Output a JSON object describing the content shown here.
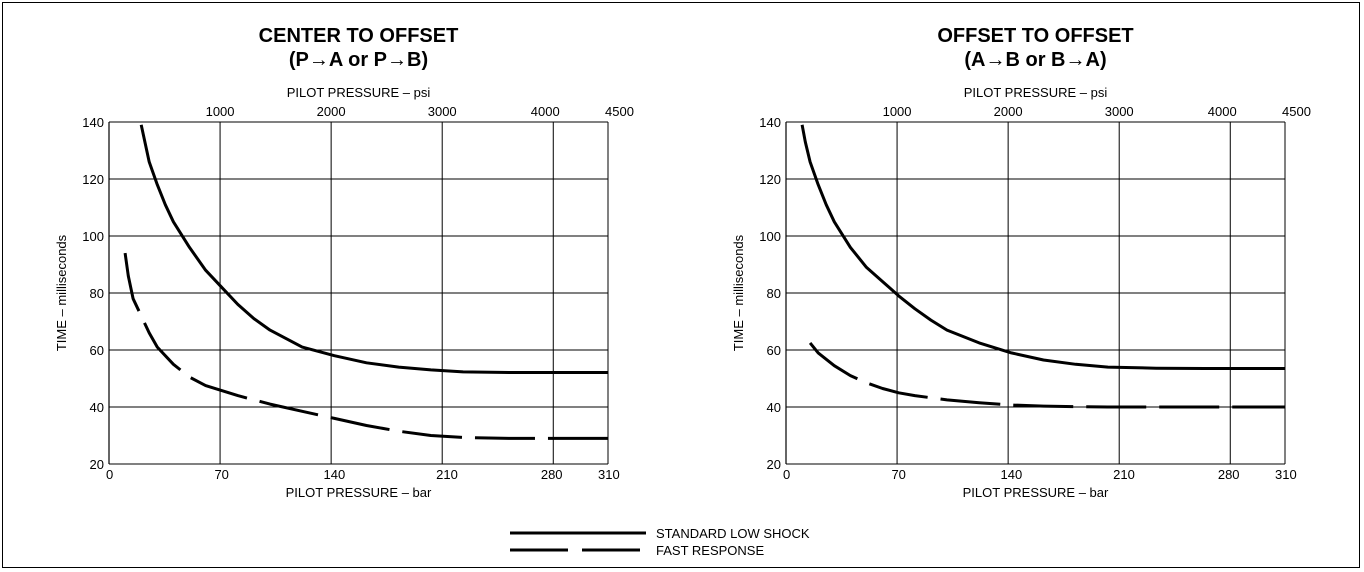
{
  "colors": {
    "line": "#000000",
    "grid": "#000000",
    "background": "#ffffff"
  },
  "chart_data": [
    {
      "type": "line",
      "title": "CENTER TO OFFSET",
      "subtitle": "(P→A or P→B)",
      "xlabel": "PILOT PRESSURE – bar",
      "x2label": "PILOT PRESSURE – psi",
      "ylabel": "TIME – milliseconds",
      "xlim": [
        0,
        310
      ],
      "ylim": [
        20,
        140
      ],
      "xticks": [
        0,
        70,
        140,
        210,
        280,
        310
      ],
      "x2ticks": [
        {
          "label": "1000",
          "bar": 69
        },
        {
          "label": "2000",
          "bar": 138
        },
        {
          "label": "3000",
          "bar": 207
        },
        {
          "label": "4000",
          "bar": 276
        },
        {
          "label": "4500",
          "bar": 310
        }
      ],
      "yticks": [
        20,
        40,
        60,
        80,
        100,
        120,
        140
      ],
      "grid": true,
      "series": [
        {
          "name": "STANDARD LOW SHOCK",
          "style": "solid",
          "x": [
            20,
            25,
            30,
            35,
            40,
            50,
            60,
            70,
            80,
            90,
            100,
            110,
            120,
            140,
            160,
            180,
            200,
            220,
            250,
            280,
            310
          ],
          "y": [
            139,
            126,
            118,
            111,
            105,
            96,
            88,
            82,
            76,
            71,
            67,
            64,
            61,
            58,
            55.5,
            54,
            53,
            52.3,
            52.1,
            52.1,
            52.1
          ]
        },
        {
          "name": "FAST RESPONSE",
          "style": "dashed",
          "x": [
            10,
            12,
            15,
            20,
            25,
            30,
            40,
            50,
            60,
            80,
            100,
            120,
            140,
            160,
            180,
            200,
            220,
            250,
            280,
            310
          ],
          "y": [
            94,
            86,
            78,
            72,
            66,
            61,
            55,
            50.5,
            47.5,
            44,
            41,
            38.5,
            36,
            33.5,
            31.5,
            30,
            29.3,
            29,
            29,
            29
          ]
        }
      ]
    },
    {
      "type": "line",
      "title": "OFFSET TO OFFSET",
      "subtitle": "(A→B or B→A)",
      "xlabel": "PILOT PRESSURE – bar",
      "x2label": "PILOT PRESSURE – psi",
      "ylabel": "TIME – milliseconds",
      "xlim": [
        0,
        310
      ],
      "ylim": [
        20,
        140
      ],
      "xticks": [
        0,
        70,
        140,
        210,
        280,
        310
      ],
      "x2ticks": [
        {
          "label": "1000",
          "bar": 69
        },
        {
          "label": "2000",
          "bar": 138
        },
        {
          "label": "3000",
          "bar": 207
        },
        {
          "label": "4000",
          "bar": 276
        },
        {
          "label": "4500",
          "bar": 310
        }
      ],
      "yticks": [
        20,
        40,
        60,
        80,
        100,
        120,
        140
      ],
      "grid": true,
      "series": [
        {
          "name": "STANDARD LOW SHOCK",
          "style": "solid",
          "x": [
            10,
            12,
            15,
            20,
            25,
            30,
            40,
            50,
            60,
            70,
            80,
            90,
            100,
            120,
            140,
            160,
            180,
            200,
            230,
            260,
            310
          ],
          "y": [
            139,
            133,
            126,
            118,
            111,
            105,
            96,
            89,
            84,
            79,
            74.5,
            70.5,
            67,
            62.5,
            59,
            56.5,
            55,
            54,
            53.6,
            53.5,
            53.5
          ]
        },
        {
          "name": "FAST RESPONSE",
          "style": "dashed",
          "x": [
            15,
            20,
            30,
            40,
            50,
            60,
            70,
            80,
            100,
            120,
            140,
            160,
            180,
            200,
            230,
            260,
            310
          ],
          "y": [
            62.5,
            59,
            54.5,
            51,
            48.5,
            46.5,
            45,
            44,
            42.5,
            41.5,
            40.7,
            40.3,
            40.1,
            40,
            40,
            40,
            40
          ]
        }
      ]
    }
  ],
  "legend": {
    "items": [
      {
        "label": "STANDARD LOW SHOCK",
        "style": "solid"
      },
      {
        "label": "FAST RESPONSE",
        "style": "dashed"
      }
    ]
  }
}
